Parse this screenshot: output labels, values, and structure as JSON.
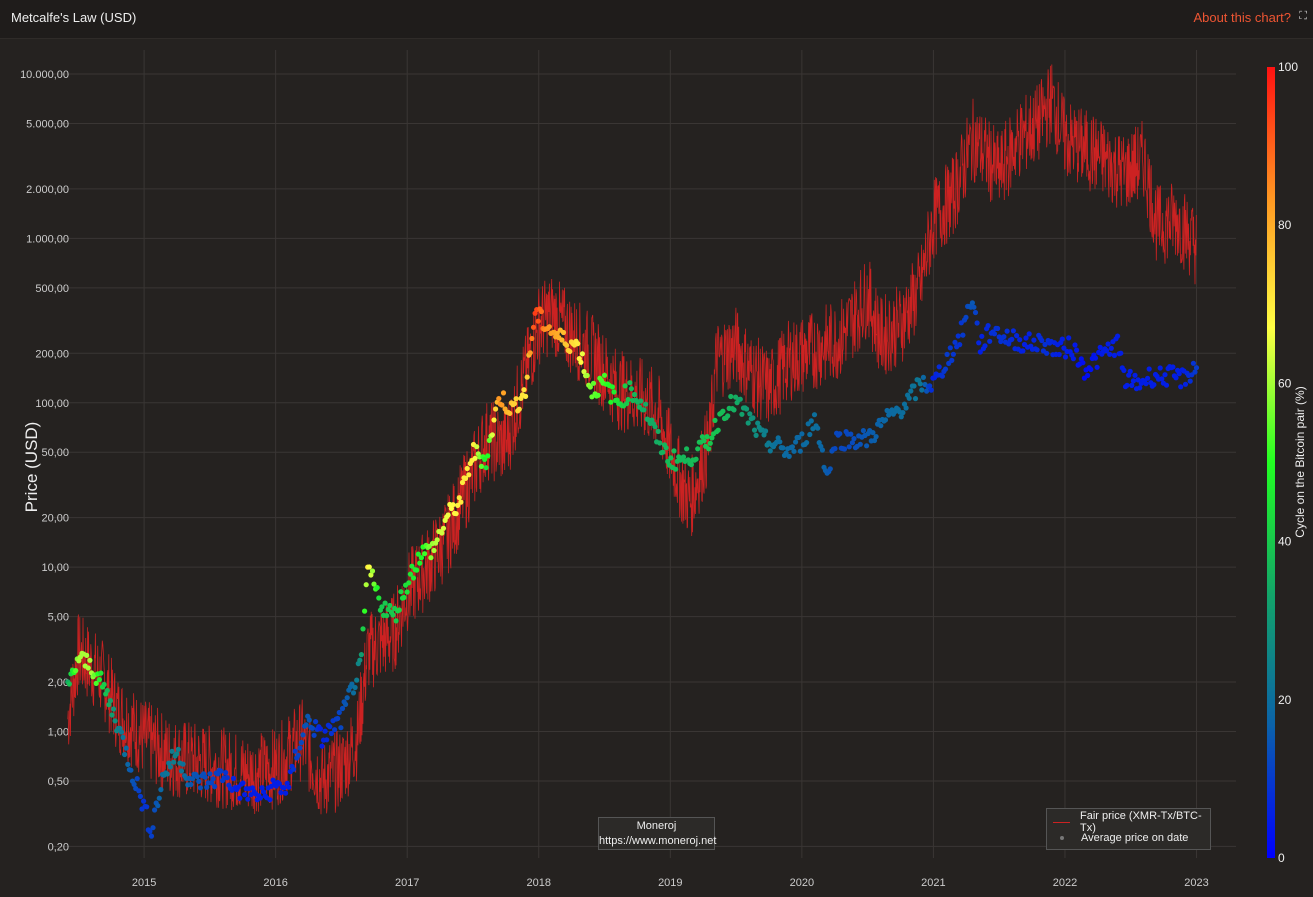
{
  "header": {
    "title": "Metcalfe's Law (USD)",
    "about_label": "About this chart?",
    "expand_icon": "expand-icon"
  },
  "watermark": {
    "line1": "Moneroj",
    "line2": "https://www.moneroj.net"
  },
  "legend": {
    "fair_price": "Fair price (XMR-Tx/BTC-Tx)",
    "average_price": "Average price on date"
  },
  "colors": {
    "fair_price_line": "#cc2222",
    "background": "#252220",
    "accent": "#ee5533"
  },
  "chart_data": {
    "type": "scatter",
    "ylabel": "Price (USD)",
    "yscale": "log",
    "ylim": [
      0.17,
      14000
    ],
    "yticks": [
      0.2,
      0.5,
      1,
      2,
      5,
      10,
      20,
      50,
      100,
      200,
      500,
      1000,
      2000,
      5000,
      10000
    ],
    "ytick_labels": [
      "0,20",
      "0,50",
      "1,00",
      "2,00",
      "5,00",
      "10,00",
      "20,00",
      "50,00",
      "100,00",
      "200,00",
      "500,00",
      "1.000,00",
      "2.000,00",
      "5.000,00",
      "10.000,00"
    ],
    "xlim": [
      2014.3,
      2023.3
    ],
    "xticks": [
      2015,
      2016,
      2017,
      2018,
      2019,
      2020,
      2021,
      2022,
      2023
    ],
    "xtick_labels": [
      "2015",
      "2016",
      "2017",
      "2018",
      "2019",
      "2020",
      "2021",
      "2022",
      "2023"
    ],
    "colorbar": {
      "label": "Cycle on the Bitcoin pair (%)",
      "range": [
        0,
        100
      ],
      "ticks": [
        0,
        20,
        40,
        60,
        80,
        100
      ],
      "colors": [
        "#0000ff",
        "#0b63a8",
        "#12a36a",
        "#22ff22",
        "#ffff44",
        "#ff9a22",
        "#ff1111"
      ]
    },
    "grid": true,
    "legend_position": "bottom-right",
    "series": [
      {
        "name": "Fair price (XMR-Tx/BTC-Tx)",
        "type": "line",
        "x": [
          2014.42,
          2014.5,
          2014.6,
          2014.7,
          2014.8,
          2015.0,
          2015.2,
          2015.4,
          2015.6,
          2015.8,
          2016.0,
          2016.2,
          2016.35,
          2016.5,
          2016.62,
          2016.7,
          2016.8,
          2016.9,
          2017.0,
          2017.15,
          2017.3,
          2017.45,
          2017.6,
          2017.75,
          2017.9,
          2018.0,
          2018.1,
          2018.25,
          2018.4,
          2018.6,
          2018.75,
          2018.9,
          2019.0,
          2019.1,
          2019.15,
          2019.3,
          2019.35,
          2019.5,
          2019.6,
          2019.75,
          2019.9,
          2020.1,
          2020.3,
          2020.5,
          2020.6,
          2020.75,
          2020.9,
          2021.0,
          2021.15,
          2021.3,
          2021.5,
          2021.65,
          2021.8,
          2021.9,
          2022.0,
          2022.15,
          2022.3,
          2022.45,
          2022.6,
          2022.7,
          2022.85,
          2023.0
        ],
        "y": [
          1.2,
          3,
          2.5,
          2,
          1.3,
          0.9,
          0.7,
          0.65,
          0.6,
          0.55,
          0.6,
          0.9,
          0.5,
          0.6,
          0.9,
          3,
          3.5,
          4,
          7,
          10,
          15,
          30,
          60,
          55,
          150,
          300,
          350,
          260,
          200,
          120,
          110,
          90,
          50,
          30,
          25,
          60,
          180,
          220,
          160,
          120,
          180,
          210,
          250,
          450,
          250,
          300,
          500,
          1300,
          1800,
          4000,
          2500,
          4000,
          5000,
          7000,
          4000,
          3500,
          3000,
          2500,
          3000,
          1200,
          1300,
          900
        ]
      },
      {
        "name": "Average price on date",
        "type": "scatter",
        "x": [
          2014.42,
          2014.5,
          2014.6,
          2014.7,
          2014.8,
          2014.9,
          2015.0,
          2015.05,
          2015.15,
          2015.25,
          2015.35,
          2015.5,
          2015.6,
          2015.7,
          2015.8,
          2015.9,
          2016.0,
          2016.1,
          2016.15,
          2016.25,
          2016.35,
          2016.5,
          2016.6,
          2016.65,
          2016.7,
          2016.8,
          2016.9,
          2017.0,
          2017.1,
          2017.2,
          2017.3,
          2017.4,
          2017.5,
          2017.6,
          2017.7,
          2017.8,
          2017.9,
          2017.97,
          2018.05,
          2018.15,
          2018.3,
          2018.4,
          2018.5,
          2018.6,
          2018.7,
          2018.8,
          2018.9,
          2019.0,
          2019.1,
          2019.2,
          2019.3,
          2019.4,
          2019.5,
          2019.6,
          2019.7,
          2019.8,
          2019.9,
          2020.0,
          2020.1,
          2020.2,
          2020.25,
          2020.35,
          2020.5,
          2020.65,
          2020.8,
          2020.9,
          2021.0,
          2021.1,
          2021.2,
          2021.3,
          2021.35,
          2021.45,
          2021.55,
          2021.7,
          2021.85,
          2021.95,
          2022.05,
          2022.15,
          2022.3,
          2022.4,
          2022.45,
          2022.55,
          2022.65,
          2022.8,
          2022.9,
          2023.0
        ],
        "y": [
          1.8,
          2.8,
          2.5,
          1.8,
          1.1,
          0.6,
          0.35,
          0.25,
          0.55,
          0.75,
          0.5,
          0.5,
          0.55,
          0.45,
          0.42,
          0.4,
          0.47,
          0.45,
          0.7,
          1.2,
          0.9,
          1.2,
          2,
          2.5,
          10,
          6,
          5,
          8,
          12,
          13,
          20,
          25,
          50,
          45,
          110,
          90,
          120,
          350,
          300,
          250,
          220,
          120,
          130,
          100,
          120,
          95,
          60,
          45,
          45,
          50,
          60,
          90,
          100,
          80,
          60,
          55,
          50,
          58,
          80,
          35,
          60,
          60,
          60,
          80,
          100,
          130,
          130,
          180,
          250,
          450,
          220,
          280,
          250,
          230,
          230,
          210,
          220,
          160,
          200,
          230,
          140,
          130,
          145,
          145,
          140,
          165
        ],
        "cycle": [
          35,
          60,
          60,
          40,
          25,
          15,
          8,
          10,
          20,
          25,
          15,
          12,
          10,
          5,
          5,
          5,
          5,
          5,
          10,
          15,
          5,
          12,
          20,
          30,
          70,
          40,
          40,
          45,
          48,
          60,
          65,
          70,
          70,
          45,
          85,
          75,
          70,
          95,
          85,
          80,
          70,
          55,
          52,
          45,
          38,
          35,
          35,
          38,
          37,
          38,
          40,
          38,
          35,
          30,
          25,
          20,
          18,
          18,
          20,
          15,
          12,
          12,
          15,
          18,
          20,
          22,
          5,
          10,
          8,
          15,
          5,
          8,
          8,
          5,
          8,
          5,
          5,
          2,
          5,
          5,
          5,
          5,
          5,
          5,
          5,
          10
        ]
      }
    ]
  }
}
